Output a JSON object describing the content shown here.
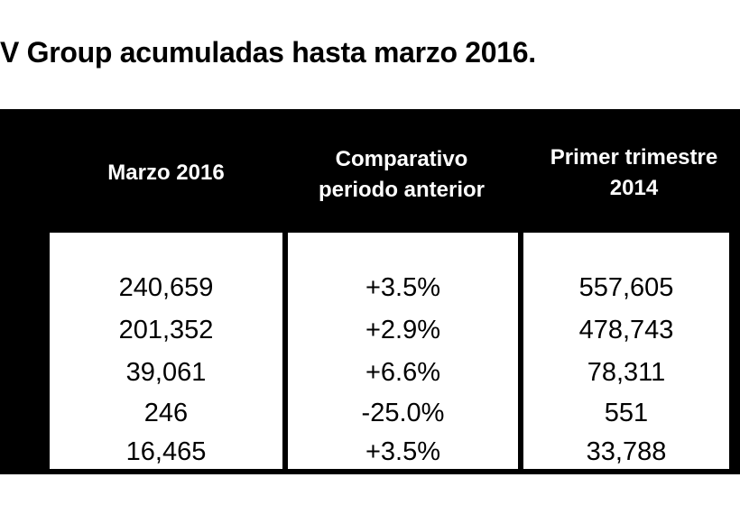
{
  "title": "V Group acumuladas hasta marzo 2016.",
  "table": {
    "headers": [
      "Marzo 2016",
      "Comparativo periodo anterior",
      "Primer trimestre 2014"
    ],
    "rows": [
      [
        "240,659",
        "+3.5%",
        "557,605"
      ],
      [
        "201,352",
        "+2.9%",
        "478,743"
      ],
      [
        "39,061",
        "+6.6%",
        "78,311"
      ],
      [
        "246",
        "-25.0%",
        "551"
      ],
      [
        "16,465",
        "+3.5%",
        "33,788"
      ]
    ]
  }
}
